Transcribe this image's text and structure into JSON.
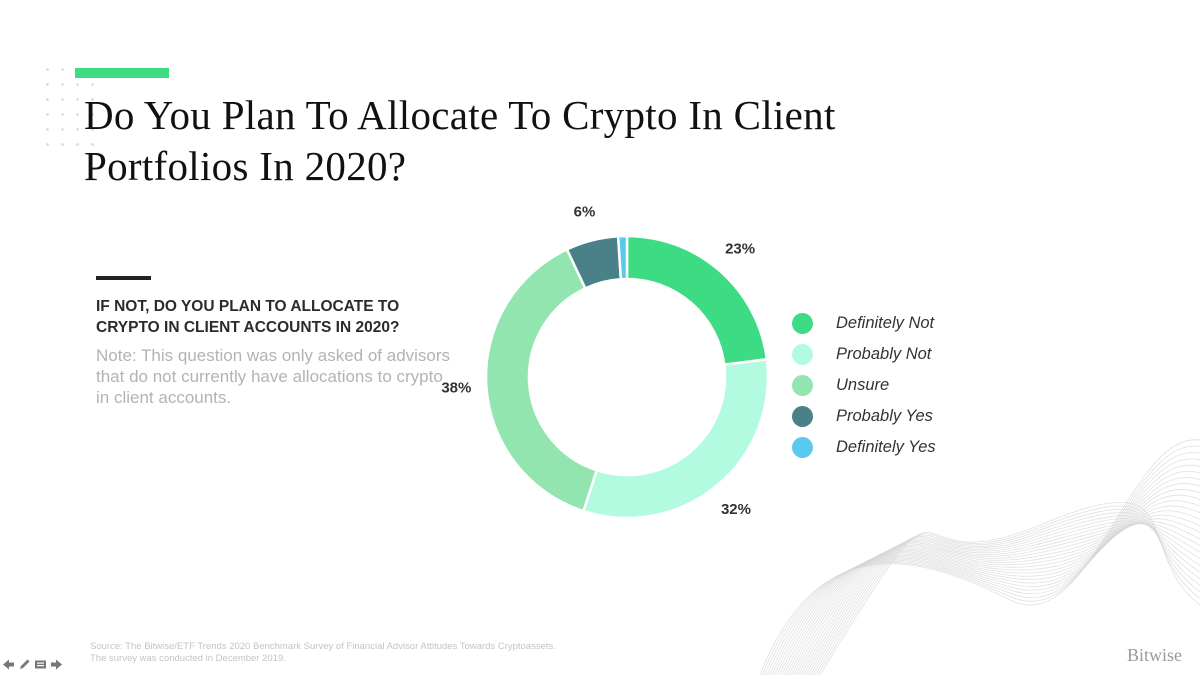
{
  "slide": {
    "title": "Do You Plan To Allocate To Crypto In Client Portfolios In 2020?",
    "question": "IF NOT, DO YOU PLAN TO ALLOCATE TO CRYPTO IN CLIENT ACCOUNTS IN 2020?",
    "note": "Note: This question was only asked of advisors that do not currently have allocations to crypto in client accounts.",
    "source_line1": "Source: The Bitwise/ETF Trends 2020 Benchmark Survey of Financial Advisor Attitudes Towards Cryptoassets.",
    "source_line2": "The survey was conducted in December 2019.",
    "brand": "Bitwise",
    "accent_color": "#3ddc84"
  },
  "nav": {
    "icons": [
      "arrow-left-icon",
      "pencil-icon",
      "slides-icon",
      "arrow-right-icon"
    ]
  },
  "chart_data": {
    "type": "pie",
    "title": "",
    "donut": true,
    "legend_position": "right",
    "categories": [
      "Definitely Not",
      "Probably Not",
      "Unsure",
      "Probably Yes",
      "Definitely Yes"
    ],
    "values": [
      23,
      32,
      38,
      6,
      1
    ],
    "labels": [
      "23%",
      "32%",
      "38%",
      "6%",
      ""
    ],
    "colors": [
      "#3ddc84",
      "#b3fbe0",
      "#93e5af",
      "#4a8088",
      "#5bc8f0"
    ]
  }
}
